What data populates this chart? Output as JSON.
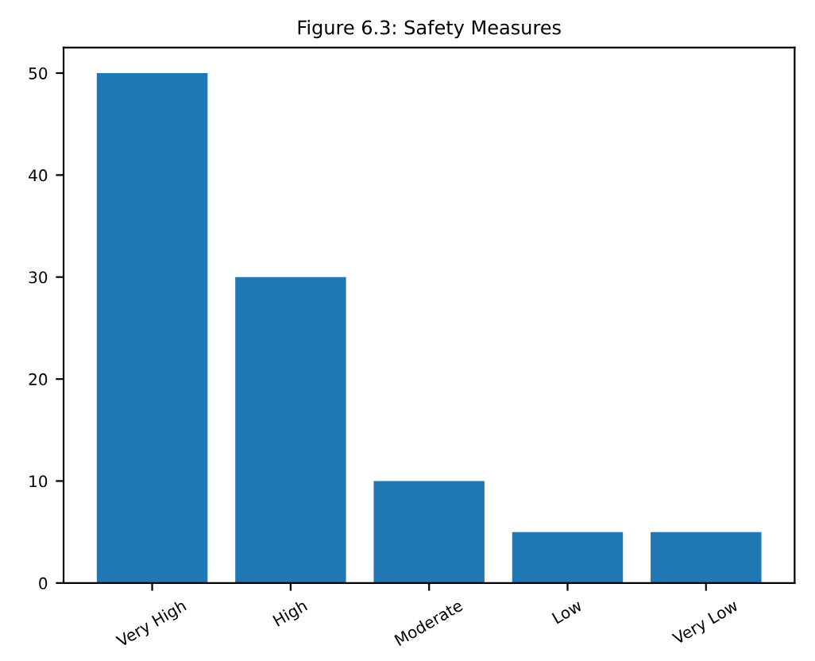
{
  "chart_data": {
    "type": "bar",
    "title": "Figure 6.3: Safety Measures",
    "categories": [
      "Very High",
      "High",
      "Moderate",
      "Low",
      "Very Low"
    ],
    "values": [
      50,
      30,
      10,
      5,
      5
    ],
    "color": "#1f77b4",
    "ylim": [
      0,
      52.5
    ],
    "yticks": [
      0,
      10,
      20,
      30,
      40,
      50
    ],
    "grid": false
  }
}
